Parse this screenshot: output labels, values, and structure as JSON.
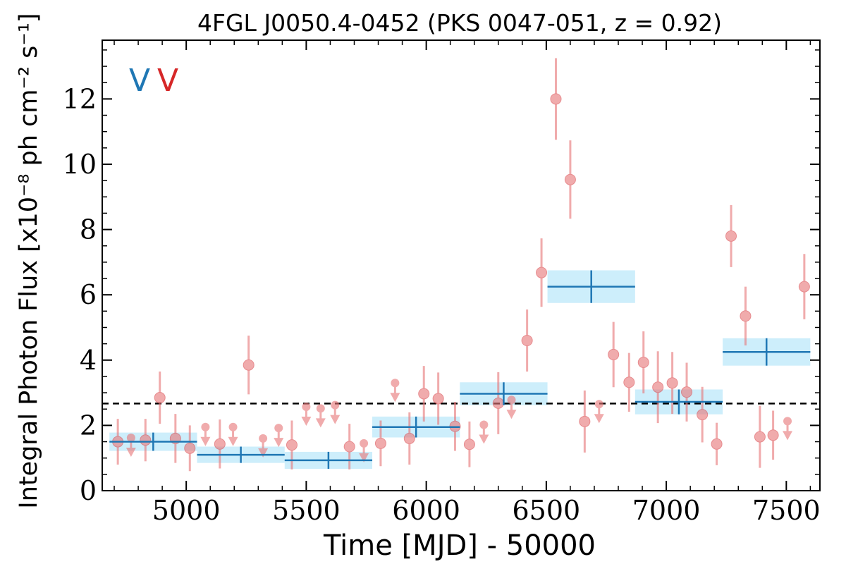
{
  "chart_data": {
    "type": "scatter",
    "title": "4FGL J0050.4-0452 (PKS 0047-051, z = 0.92)",
    "xlabel": "Time [MJD] - 50000",
    "ylabel": "Integral Photon Flux [x10⁻⁸ ph cm⁻² s⁻¹]",
    "xlim": [
      4650,
      7640
    ],
    "ylim": [
      0,
      13.8
    ],
    "xticks": [
      5000,
      5500,
      6000,
      6500,
      7000,
      7500
    ],
    "xtick_labels": [
      "5000",
      "5500",
      "6000",
      "6500",
      "7000",
      "7500"
    ],
    "yticks": [
      0,
      2,
      4,
      6,
      8,
      10,
      12
    ],
    "ytick_labels": [
      "0",
      "2",
      "4",
      "6",
      "8",
      "10",
      "12"
    ],
    "grid": false,
    "markers": [
      {
        "text": "V",
        "color": "#1f77b4"
      },
      {
        "text": "V",
        "color": "#d62728"
      }
    ],
    "reference_line": {
      "y": 2.67,
      "style": "dashed",
      "color": "#000000"
    },
    "series": [
      {
        "kind": "short_bins",
        "color": "#e8787a",
        "points": [
          {
            "x": 4715,
            "y": 1.5,
            "err": 0.7
          },
          {
            "x": 4770,
            "y": 1.62,
            "upper_limit": true
          },
          {
            "x": 4830,
            "y": 1.55,
            "err": 0.65
          },
          {
            "x": 4890,
            "y": 2.85,
            "err": 0.8
          },
          {
            "x": 4955,
            "y": 1.6,
            "err": 0.75
          },
          {
            "x": 5015,
            "y": 1.3,
            "err": 0.7
          },
          {
            "x": 5080,
            "y": 1.95,
            "upper_limit": true
          },
          {
            "x": 5140,
            "y": 1.43,
            "err": 0.75
          },
          {
            "x": 5195,
            "y": 1.95,
            "upper_limit": true
          },
          {
            "x": 5260,
            "y": 3.85,
            "err": 0.9
          },
          {
            "x": 5320,
            "y": 1.6,
            "upper_limit": true
          },
          {
            "x": 5385,
            "y": 1.92,
            "upper_limit": true
          },
          {
            "x": 5440,
            "y": 1.4,
            "err": 0.75
          },
          {
            "x": 5500,
            "y": 2.57,
            "upper_limit": true
          },
          {
            "x": 5560,
            "y": 2.52,
            "upper_limit": true
          },
          {
            "x": 5620,
            "y": 2.62,
            "upper_limit": true
          },
          {
            "x": 5680,
            "y": 1.35,
            "err": 0.7
          },
          {
            "x": 5740,
            "y": 1.45,
            "upper_limit": true
          },
          {
            "x": 5810,
            "y": 1.45,
            "err": 0.7
          },
          {
            "x": 5870,
            "y": 3.3,
            "upper_limit": true
          },
          {
            "x": 5930,
            "y": 1.6,
            "err": 0.8
          },
          {
            "x": 5990,
            "y": 2.97,
            "err": 0.85
          },
          {
            "x": 6050,
            "y": 2.82,
            "err": 0.8
          },
          {
            "x": 6120,
            "y": 1.97,
            "err": 0.75
          },
          {
            "x": 6180,
            "y": 1.42,
            "err": 0.7
          },
          {
            "x": 6240,
            "y": 2.02,
            "upper_limit": true
          },
          {
            "x": 6300,
            "y": 2.68,
            "err": 0.95
          },
          {
            "x": 6355,
            "y": 2.78,
            "upper_limit": true
          },
          {
            "x": 6420,
            "y": 4.6,
            "err": 0.95
          },
          {
            "x": 6480,
            "y": 6.68,
            "err": 1.05
          },
          {
            "x": 6540,
            "y": 12.0,
            "err": 1.25
          },
          {
            "x": 6600,
            "y": 9.53,
            "err": 1.2
          },
          {
            "x": 6660,
            "y": 2.12,
            "err": 0.95
          },
          {
            "x": 6720,
            "y": 2.65,
            "upper_limit": true
          },
          {
            "x": 6780,
            "y": 4.17,
            "err": 1.0
          },
          {
            "x": 6845,
            "y": 3.32,
            "err": 0.9
          },
          {
            "x": 6905,
            "y": 3.93,
            "err": 0.95
          },
          {
            "x": 6965,
            "y": 3.17,
            "err": 1.1
          },
          {
            "x": 7025,
            "y": 3.3,
            "err": 0.95
          },
          {
            "x": 7085,
            "y": 3.02,
            "err": 0.9
          },
          {
            "x": 7150,
            "y": 2.33,
            "err": 0.85
          },
          {
            "x": 7210,
            "y": 1.43,
            "err": 0.65
          },
          {
            "x": 7270,
            "y": 7.8,
            "err": 0.95
          },
          {
            "x": 7330,
            "y": 5.35,
            "err": 0.9
          },
          {
            "x": 7390,
            "y": 1.65,
            "err": 0.95
          },
          {
            "x": 7445,
            "y": 1.7,
            "err": 0.75
          },
          {
            "x": 7505,
            "y": 2.13,
            "upper_limit": true
          },
          {
            "x": 7575,
            "y": 6.25,
            "err": 1.0
          }
        ]
      },
      {
        "kind": "long_bins",
        "color": "#1f77b4",
        "band_color": "#cdeefb",
        "bins": [
          {
            "x0": 4680,
            "x1": 5045,
            "y": 1.5,
            "err": 0.28
          },
          {
            "x0": 5045,
            "x1": 5410,
            "y": 1.1,
            "err": 0.25
          },
          {
            "x0": 5410,
            "x1": 5775,
            "y": 0.93,
            "err": 0.26
          },
          {
            "x0": 5775,
            "x1": 6140,
            "y": 1.95,
            "err": 0.32
          },
          {
            "x0": 6140,
            "x1": 6505,
            "y": 2.97,
            "err": 0.35
          },
          {
            "x0": 6505,
            "x1": 6870,
            "y": 6.25,
            "err": 0.5
          },
          {
            "x0": 6870,
            "x1": 7235,
            "y": 2.72,
            "err": 0.38
          },
          {
            "x0": 7235,
            "x1": 7600,
            "y": 4.25,
            "err": 0.42
          }
        ]
      }
    ]
  }
}
